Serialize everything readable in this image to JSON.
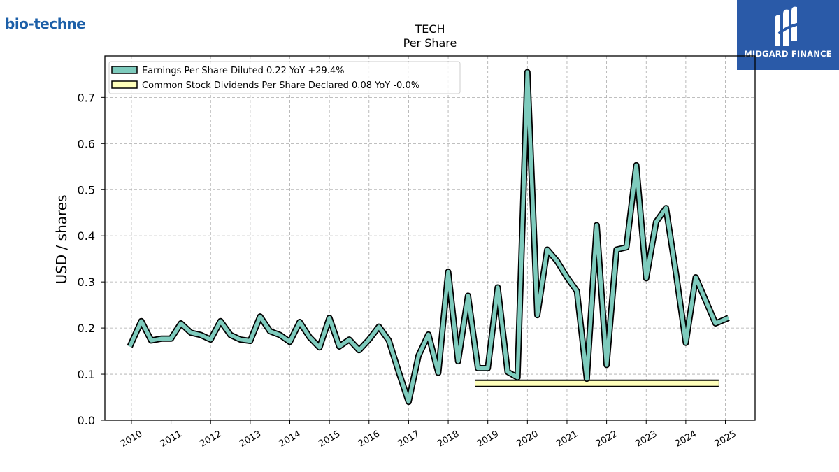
{
  "brand": {
    "left_logo": "bio-techne",
    "right_logo": "MIDGARD FINANCE",
    "right_bg": "#2a5aa8"
  },
  "header": {
    "title": "TECH",
    "subtitle": "Per  Share"
  },
  "chart_data": {
    "type": "line",
    "title": "TECH",
    "subtitle": "Per  Share",
    "xlabel": "",
    "ylabel": "USD / shares",
    "ylim": [
      0.0,
      0.79
    ],
    "xlim": [
      2009.33,
      2025.75
    ],
    "yticks": [
      "0.0",
      "0.1",
      "0.2",
      "0.3",
      "0.4",
      "0.5",
      "0.6",
      "0.7"
    ],
    "xticks": [
      "2010",
      "2011",
      "2012",
      "2013",
      "2014",
      "2015",
      "2016",
      "2017",
      "2018",
      "2019",
      "2020",
      "2021",
      "2022",
      "2023",
      "2024",
      "2025"
    ],
    "grid": true,
    "legend_position": "top-left",
    "series": [
      {
        "name": "Earnings Per Share Diluted  0.22 YoY +29.4%",
        "color": "#7ecbbd",
        "x": [
          2009.96,
          2010.25,
          2010.5,
          2010.75,
          2011.0,
          2011.25,
          2011.5,
          2011.75,
          2012.0,
          2012.25,
          2012.5,
          2012.75,
          2013.0,
          2013.25,
          2013.5,
          2013.75,
          2014.0,
          2014.25,
          2014.5,
          2014.75,
          2015.0,
          2015.25,
          2015.5,
          2015.75,
          2016.0,
          2016.25,
          2016.5,
          2016.75,
          2017.0,
          2017.25,
          2017.5,
          2017.75,
          2018.0,
          2018.25,
          2018.5,
          2018.75,
          2019.0,
          2019.25,
          2019.5,
          2019.75,
          2020.0,
          2020.25,
          2020.5,
          2020.75,
          2021.0,
          2021.25,
          2021.5,
          2021.75,
          2022.0,
          2022.25,
          2022.5,
          2022.75,
          2023.0,
          2023.25,
          2023.5,
          2023.75,
          2024.0,
          2024.25,
          2024.5,
          2024.75,
          2025.08
        ],
        "y": [
          0.16,
          0.215,
          0.173,
          0.177,
          0.177,
          0.21,
          0.19,
          0.185,
          0.175,
          0.215,
          0.185,
          0.175,
          0.172,
          0.225,
          0.193,
          0.185,
          0.17,
          0.213,
          0.18,
          0.158,
          0.222,
          0.16,
          0.175,
          0.152,
          0.175,
          0.203,
          0.173,
          0.105,
          0.04,
          0.14,
          0.186,
          0.103,
          0.322,
          0.128,
          0.27,
          0.113,
          0.113,
          0.288,
          0.105,
          0.093,
          0.755,
          0.228,
          0.37,
          0.345,
          0.31,
          0.28,
          0.09,
          0.423,
          0.12,
          0.37,
          0.375,
          0.553,
          0.308,
          0.43,
          0.46,
          0.32,
          0.168,
          0.31,
          0.26,
          0.21,
          0.222
        ]
      },
      {
        "name": "Common Stock Dividends Per Share Declared  0.08 YoY -0.0%",
        "color": "#ffffbb",
        "x": [
          2018.67,
          2024.83
        ],
        "y": [
          0.08,
          0.08
        ]
      }
    ]
  }
}
